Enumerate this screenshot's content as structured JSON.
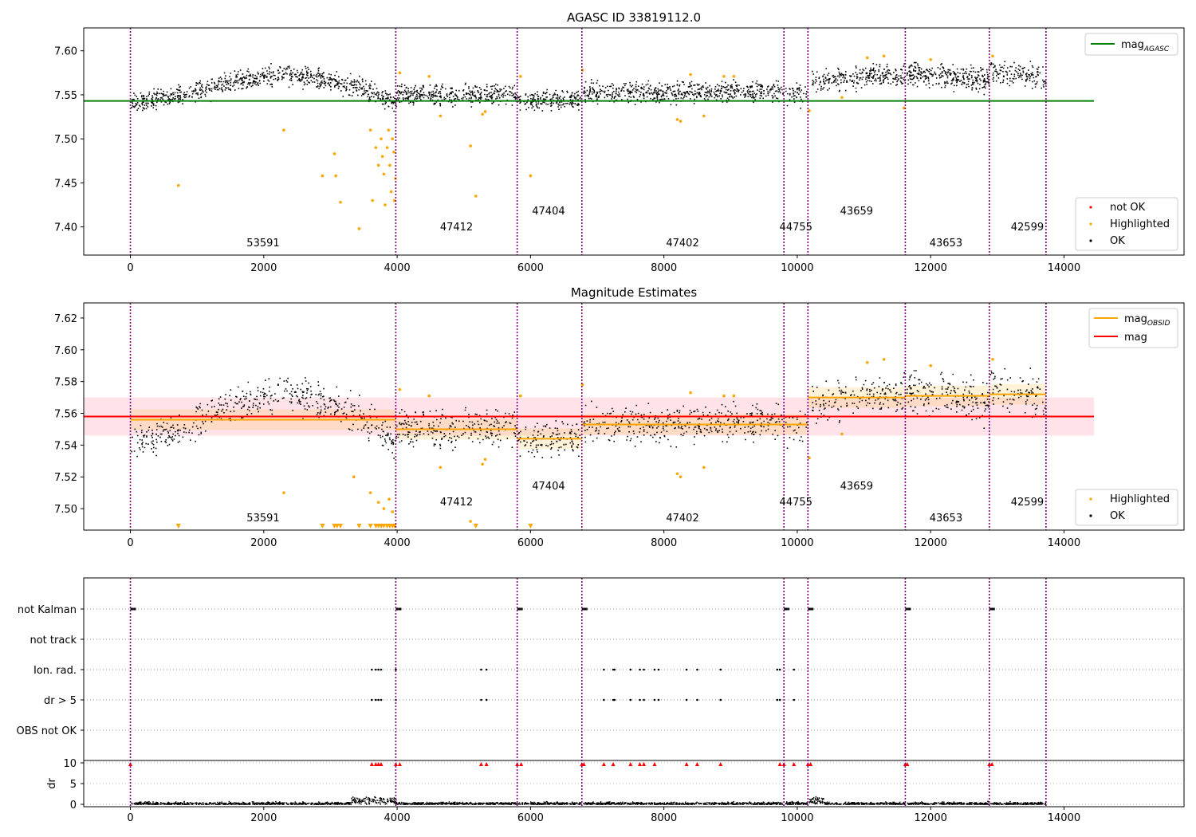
{
  "colors": {
    "ok": "#000000",
    "highlighted": "#ffa500",
    "not_ok": "#ff0000",
    "obsid_line": "#800080",
    "agasc_line": "#008000",
    "mag_line": "#ff0000",
    "band": "#ffc0cb"
  },
  "chart_data": [
    {
      "type": "scatter",
      "title": "AGASC ID 33819112.0",
      "xlim": [
        -700,
        15800
      ],
      "ylim": [
        7.368,
        7.626
      ],
      "xticks": [
        "0",
        "2000",
        "4000",
        "6000",
        "8000",
        "10000",
        "12000",
        "14000"
      ],
      "yticks": [
        "7.40",
        "7.45",
        "7.50",
        "7.55",
        "7.60"
      ],
      "legend_upper": {
        "position": "top-right",
        "entries": [
          "mag_{AGASC}"
        ]
      },
      "legend_lower": {
        "position": "bottom-right",
        "entries": [
          "not OK",
          "Highlighted",
          "OK"
        ]
      },
      "mag_agasc": 7.543,
      "mag_agasc_xrange": [
        -700,
        14450
      ],
      "obsid_boundaries": [
        0,
        3980,
        5800,
        6770,
        9800,
        10160,
        11620,
        12880,
        13730
      ],
      "obsids": [
        {
          "label": "53591",
          "x": 1990,
          "y": 7.378
        },
        {
          "label": "47412",
          "x": 4890,
          "y": 7.396
        },
        {
          "label": "47404",
          "x": 6270,
          "y": 7.414
        },
        {
          "label": "47402",
          "x": 8280,
          "y": 7.378
        },
        {
          "label": "44755",
          "x": 9980,
          "y": 7.396
        },
        {
          "label": "43659",
          "x": 10890,
          "y": 7.414
        },
        {
          "label": "43653",
          "x": 12230,
          "y": 7.378
        },
        {
          "label": "42599",
          "x": 13450,
          "y": 7.396
        }
      ],
      "highlighted_points": [
        [
          720,
          7.447
        ],
        [
          2300,
          7.51
        ],
        [
          2880,
          7.458
        ],
        [
          3060,
          7.483
        ],
        [
          3080,
          7.458
        ],
        [
          3150,
          7.428
        ],
        [
          3430,
          7.398
        ],
        [
          3600,
          7.51
        ],
        [
          3630,
          7.43
        ],
        [
          3680,
          7.49
        ],
        [
          3720,
          7.47
        ],
        [
          3760,
          7.5
        ],
        [
          3780,
          7.48
        ],
        [
          3800,
          7.46
        ],
        [
          3820,
          7.425
        ],
        [
          3850,
          7.49
        ],
        [
          3870,
          7.51
        ],
        [
          3890,
          7.47
        ],
        [
          3910,
          7.44
        ],
        [
          3930,
          7.5
        ],
        [
          3950,
          7.485
        ],
        [
          3960,
          7.43
        ],
        [
          3975,
          7.455
        ],
        [
          4040,
          7.575
        ],
        [
          4480,
          7.571
        ],
        [
          4650,
          7.526
        ],
        [
          5100,
          7.492
        ],
        [
          5180,
          7.435
        ],
        [
          5280,
          7.528
        ],
        [
          5320,
          7.531
        ],
        [
          5850,
          7.571
        ],
        [
          6000,
          7.458
        ],
        [
          6780,
          7.578
        ],
        [
          8200,
          7.522
        ],
        [
          8250,
          7.52
        ],
        [
          8400,
          7.573
        ],
        [
          8600,
          7.526
        ],
        [
          8900,
          7.571
        ],
        [
          9050,
          7.571
        ],
        [
          10180,
          7.532
        ],
        [
          10670,
          7.547
        ],
        [
          11050,
          7.592
        ],
        [
          11300,
          7.594
        ],
        [
          11600,
          7.535
        ],
        [
          12000,
          7.59
        ],
        [
          12930,
          7.594
        ]
      ]
    },
    {
      "type": "scatter",
      "title": "Magnitude Estimates",
      "xlim": [
        -700,
        15800
      ],
      "ylim": [
        7.4865,
        7.6295
      ],
      "xticks": [
        "0",
        "2000",
        "4000",
        "6000",
        "8000",
        "10000",
        "12000",
        "14000"
      ],
      "yticks": [
        "7.50",
        "7.52",
        "7.54",
        "7.56",
        "7.58",
        "7.60",
        "7.62"
      ],
      "legend_upper": {
        "position": "top-right",
        "entries": [
          "mag_{OBSID}",
          "mag"
        ]
      },
      "legend_lower": {
        "position": "bottom-right",
        "entries": [
          "Highlighted",
          "OK"
        ]
      },
      "mag": 7.558,
      "mag_band": [
        7.546,
        7.57
      ],
      "mag_xrange": [
        -700,
        14450
      ],
      "mag_obsid": [
        {
          "x0": 0,
          "x1": 3980,
          "mag": 7.556
        },
        {
          "x0": 3980,
          "x1": 5800,
          "mag": 7.55
        },
        {
          "x0": 5800,
          "x1": 6770,
          "mag": 7.544
        },
        {
          "x0": 6770,
          "x1": 9800,
          "mag": 7.553
        },
        {
          "x0": 9800,
          "x1": 10160,
          "mag": 7.553
        },
        {
          "x0": 10160,
          "x1": 11620,
          "mag": 7.57
        },
        {
          "x0": 11620,
          "x1": 12880,
          "mag": 7.571
        },
        {
          "x0": 12880,
          "x1": 13730,
          "mag": 7.572
        }
      ],
      "obsid_boundaries": [
        0,
        3980,
        5800,
        6770,
        9800,
        10160,
        11620,
        12880,
        13730
      ],
      "obsids": [
        {
          "label": "53591",
          "x": 1990,
          "y": 7.492
        },
        {
          "label": "47412",
          "x": 4890,
          "y": 7.502
        },
        {
          "label": "47404",
          "x": 6270,
          "y": 7.512
        },
        {
          "label": "47402",
          "x": 8280,
          "y": 7.492
        },
        {
          "label": "44755",
          "x": 9980,
          "y": 7.502
        },
        {
          "label": "43659",
          "x": 10890,
          "y": 7.512
        },
        {
          "label": "43653",
          "x": 12230,
          "y": 7.492
        },
        {
          "label": "42599",
          "x": 13450,
          "y": 7.502
        }
      ],
      "highlighted_points": [
        [
          2300,
          7.51
        ],
        [
          3350,
          7.52
        ],
        [
          3600,
          7.51
        ],
        [
          3720,
          7.504
        ],
        [
          3800,
          7.5
        ],
        [
          3880,
          7.506
        ],
        [
          3930,
          7.498
        ],
        [
          4040,
          7.575
        ],
        [
          4480,
          7.571
        ],
        [
          4650,
          7.526
        ],
        [
          5100,
          7.492
        ],
        [
          5280,
          7.528
        ],
        [
          5320,
          7.531
        ],
        [
          5850,
          7.571
        ],
        [
          6780,
          7.578
        ],
        [
          8200,
          7.522
        ],
        [
          8250,
          7.52
        ],
        [
          8400,
          7.573
        ],
        [
          8600,
          7.526
        ],
        [
          8900,
          7.571
        ],
        [
          9050,
          7.571
        ],
        [
          10180,
          7.532
        ],
        [
          10670,
          7.547
        ],
        [
          11050,
          7.592
        ],
        [
          11300,
          7.594
        ],
        [
          12000,
          7.59
        ],
        [
          12930,
          7.594
        ]
      ],
      "clipped_markers_x": [
        720,
        2880,
        3060,
        3100,
        3150,
        3430,
        3600,
        3680,
        3720,
        3760,
        3800,
        3850,
        3890,
        3930,
        3960,
        5180,
        6000
      ]
    },
    {
      "type": "scatter",
      "title": "",
      "xlim": [
        -700,
        15800
      ],
      "xticks": [
        "0",
        "2000",
        "4000",
        "6000",
        "8000",
        "10000",
        "12000",
        "14000"
      ],
      "flag_rows": [
        "not Kalman",
        "not track",
        "Ion. rad.",
        "dr > 5",
        "OBS not OK"
      ],
      "flags": {
        "not Kalman": [
          0,
          3980,
          5800,
          6770,
          9800,
          10160,
          11620,
          12880
        ],
        "not track": [],
        "Ion. rad.": [
          3620,
          3680,
          3720,
          3760,
          3980,
          5260,
          5340,
          7100,
          7240,
          7260,
          7500,
          7640,
          7700,
          7860,
          7920,
          8340,
          8500,
          8850,
          9700,
          9740,
          9950
        ],
        "dr > 5": [
          3620,
          3680,
          3720,
          3760,
          3980,
          5260,
          5340,
          7100,
          7240,
          7260,
          7500,
          7640,
          7700,
          7860,
          7920,
          8340,
          8500,
          8850,
          9700,
          9740,
          9950
        ],
        "OBS not OK": []
      },
      "dr": {
        "ylabel": "dr",
        "ylim": [
          -0.5,
          10.5
        ],
        "yticks": [
          "0",
          "5",
          "10"
        ],
        "clipped_x": [
          0,
          3620,
          3680,
          3720,
          3760,
          3980,
          4040,
          5260,
          5340,
          5800,
          5860,
          6770,
          6800,
          7100,
          7240,
          7500,
          7640,
          7700,
          7860,
          8340,
          8500,
          8850,
          9740,
          9800,
          9950,
          10160,
          10200,
          11620,
          11650,
          12880,
          12920
        ]
      },
      "obsid_boundaries": [
        0,
        3980,
        5800,
        6770,
        9800,
        10160,
        11620,
        12880,
        13730
      ]
    }
  ]
}
